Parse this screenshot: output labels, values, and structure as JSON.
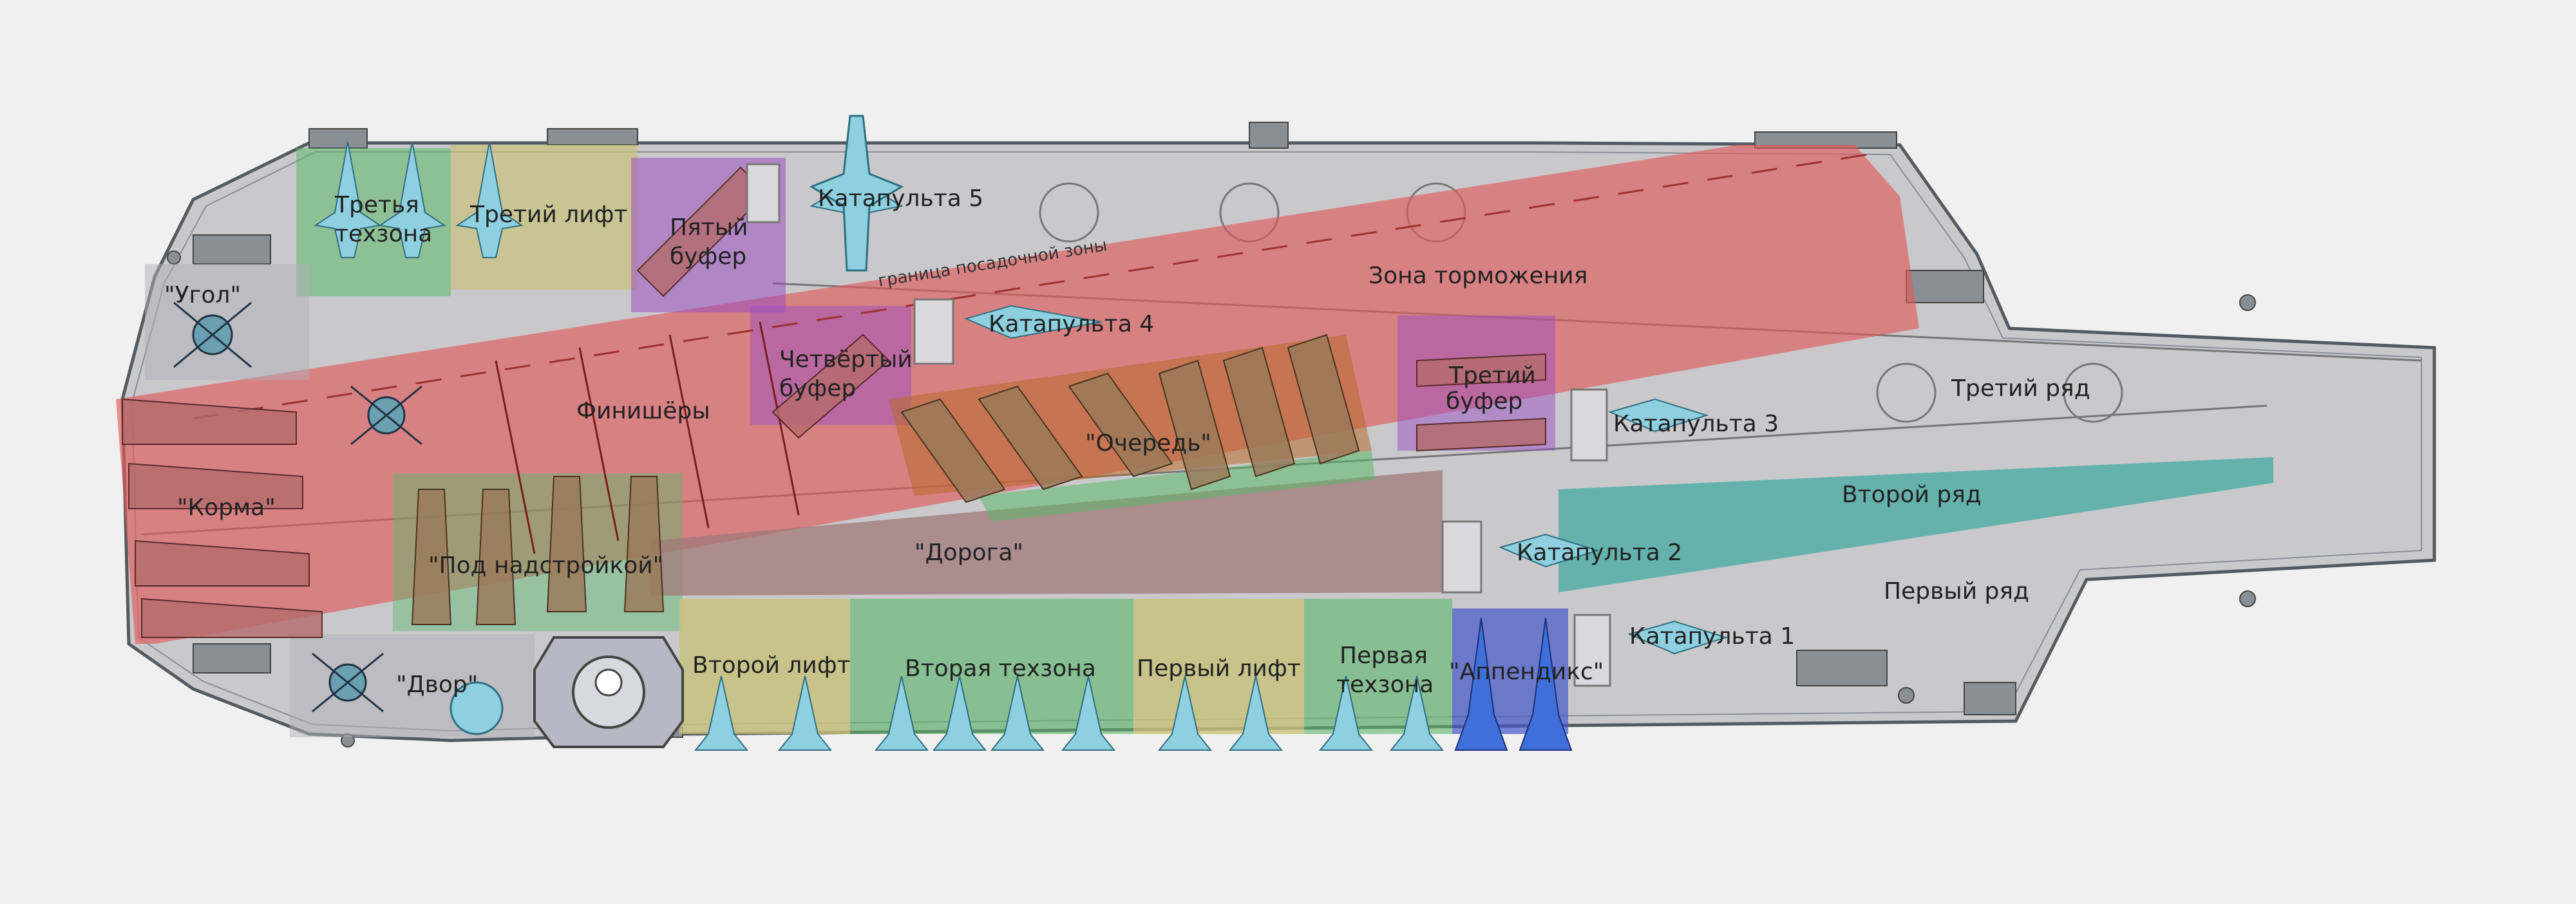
{
  "zones": {
    "corner": "\"Угол\"",
    "stern": "\"Корма\"",
    "under_superstructure": "\"Под надстройкой\"",
    "yard": "\"Двор\"",
    "third_techzone_line1": "Третья",
    "third_techzone_line2": "техзона",
    "third_lift": "Третий лифт",
    "fifth_buffer_line1": "Пятый",
    "fifth_buffer_line2": "буфер",
    "catapult_5": "Катапульта 5",
    "landing_zone_border": "граница посадочной зоны",
    "braking_zone": "Зона торможения",
    "fourth_buffer_line1": "Четвёртый",
    "fourth_buffer_line2": "буфер",
    "catapult_4": "Катапульта 4",
    "finishers": "Финишёры",
    "queue": "\"Очередь\"",
    "third_buffer_line1": "Третий",
    "third_buffer_line2": "буфер",
    "catapult_3": "Катапульта 3",
    "third_row": "Третий ряд",
    "second_row": "Второй ряд",
    "first_row": "Первый ряд",
    "road": "\"Дорога\"",
    "catapult_2": "Катапульта 2",
    "catapult_1": "Катапульта 1",
    "second_lift": "Второй лифт",
    "second_techzone": "Вторая техзона",
    "first_lift": "Первый лифт",
    "first_techzone_line1": "Первая",
    "first_techzone_line2": "техзона",
    "appendix": "\"Аппендикс\""
  },
  "colors": {
    "deck": "#c9c9cc",
    "deck_edge": "#555a60",
    "landing_zone": "#e05a5a",
    "techzone": "#5cb86a",
    "lift": "#c8c27a",
    "buffer": "#9a4fc0",
    "road": "#a07878",
    "queue": "#b86a2c",
    "second_row": "#3aa8a0",
    "appendix": "#4455c8",
    "aircraft_fighter": "#8ecfe0",
    "aircraft_bomber": "#9a7a5a",
    "helicopter": "#6aa0b0",
    "background": "#f0f0f0"
  }
}
